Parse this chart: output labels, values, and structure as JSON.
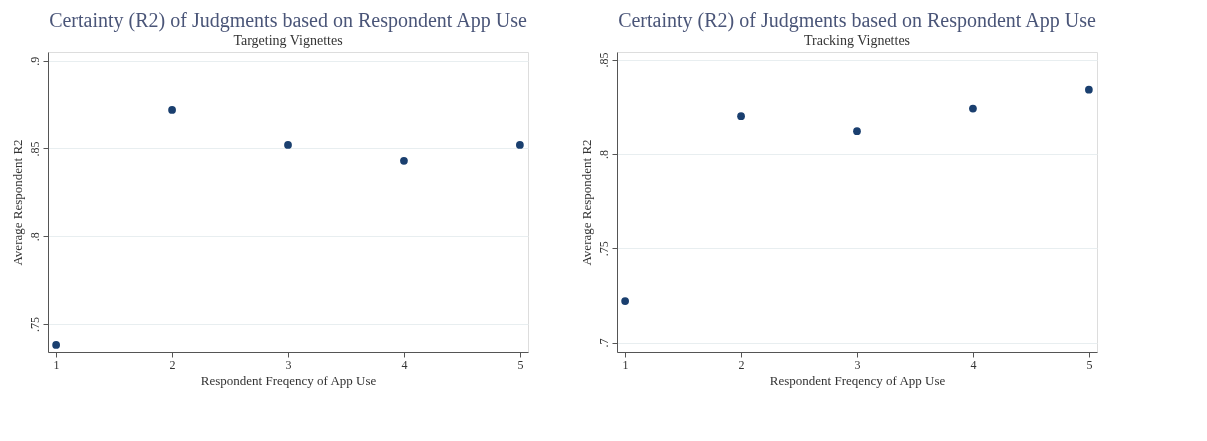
{
  "chart_data": [
    {
      "type": "scatter",
      "title": "Certainty (R2) of Judgments based on Respondent App Use",
      "subtitle": "Targeting Vignettes",
      "xlabel": "Respondent Freqency of App Use",
      "ylabel": "Average Respondent R2",
      "x": [
        1,
        2,
        3,
        4,
        5
      ],
      "series": [
        {
          "color": "#1a3f6f",
          "values": [
            0.738,
            0.872,
            0.852,
            0.843,
            0.852
          ]
        }
      ],
      "xlim": [
        0.93,
        5.07
      ],
      "xticks": [
        1,
        2,
        3,
        4,
        5
      ],
      "ylim": [
        0.734,
        0.905
      ],
      "yticks": [
        {
          "value": 0.75,
          "label": ".75"
        },
        {
          "value": 0.8,
          "label": ".8"
        },
        {
          "value": 0.85,
          "label": ".85"
        },
        {
          "value": 0.9,
          "label": ".9"
        }
      ],
      "grid": "y",
      "marker": "circle"
    },
    {
      "type": "scatter",
      "title": "Certainty (R2) of Judgments based on Respondent App Use",
      "subtitle": "Tracking Vignettes",
      "xlabel": "Respondent Freqency of App Use",
      "ylabel": "Average Respondent R2",
      "x": [
        1,
        2,
        3,
        4,
        5
      ],
      "series": [
        {
          "color": "#1a3f6f",
          "values": [
            0.722,
            0.82,
            0.812,
            0.824,
            0.834
          ]
        }
      ],
      "xlim": [
        0.93,
        5.07
      ],
      "xticks": [
        1,
        2,
        3,
        4,
        5
      ],
      "ylim": [
        0.695,
        0.854
      ],
      "yticks": [
        {
          "value": 0.7,
          "label": ".7"
        },
        {
          "value": 0.75,
          "label": ".75"
        },
        {
          "value": 0.8,
          "label": ".8"
        },
        {
          "value": 0.85,
          "label": ".85"
        }
      ],
      "grid": "y",
      "marker": "circle"
    }
  ]
}
